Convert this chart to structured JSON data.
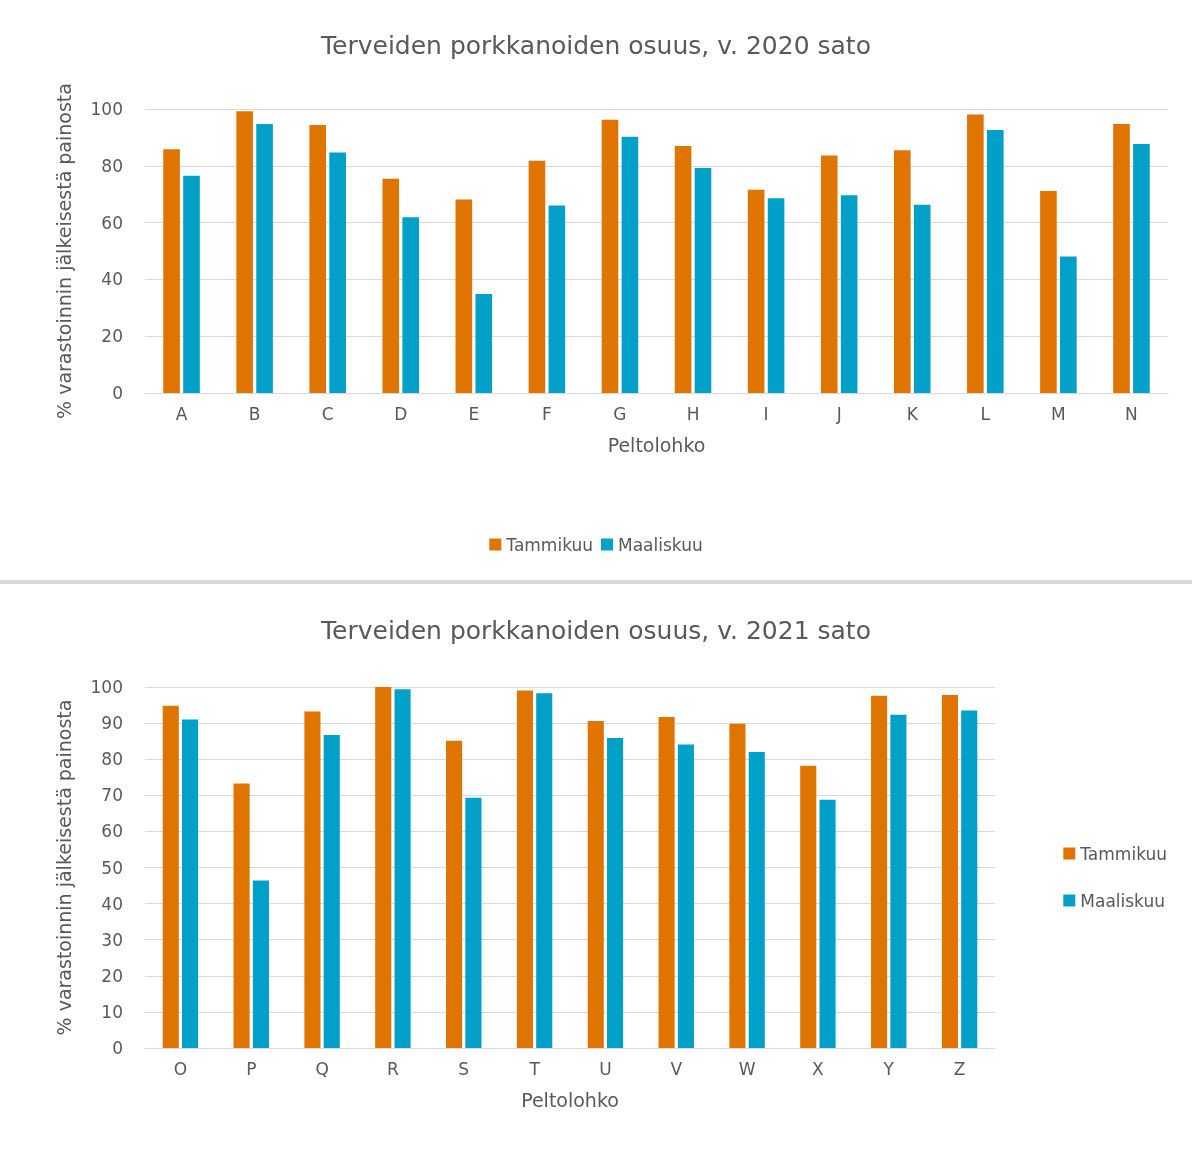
{
  "chart_data": [
    {
      "type": "bar",
      "title": "Terveiden porkkanoiden osuus, v. 2020 sato",
      "xlabel": "Peltolohko",
      "ylabel": "% varastoinnin jälkeisestä painosta",
      "categories": [
        "A",
        "B",
        "C",
        "D",
        "E",
        "F",
        "G",
        "H",
        "I",
        "J",
        "K",
        "L",
        "M",
        "N"
      ],
      "series": [
        {
          "name": "Tammikuu",
          "color": "#e07400",
          "values": [
            85.8,
            99.2,
            94.4,
            75.4,
            68.1,
            81.8,
            96.2,
            87,
            71.6,
            83.6,
            85.5,
            98.1,
            71.1,
            94.7
          ]
        },
        {
          "name": "Maaliskuu",
          "color": "#00a0c8",
          "values": [
            76.5,
            94.7,
            84.7,
            61.9,
            34.9,
            66,
            90.2,
            79.2,
            68.6,
            69.6,
            66.3,
            92.6,
            48.1,
            87.7
          ]
        }
      ],
      "ylim": [
        0,
        100
      ],
      "yticks": [
        0,
        20,
        40,
        60,
        80,
        100
      ],
      "grid": "y",
      "legend": "bottom"
    },
    {
      "type": "bar",
      "title": "Terveiden porkkanoiden osuus, v. 2021 sato",
      "xlabel": "Peltolohko",
      "ylabel": "% varastoinnin jälkeisestä painosta",
      "categories": [
        "O",
        "P",
        "Q",
        "R",
        "S",
        "T",
        "U",
        "V",
        "W",
        "X",
        "Y",
        "Z"
      ],
      "series": [
        {
          "name": "Tammikuu",
          "color": "#e07400",
          "values": [
            94.8,
            73.3,
            93.2,
            100,
            85.1,
            99,
            90.6,
            91.7,
            89.8,
            78.2,
            97.6,
            97.8
          ]
        },
        {
          "name": "Maaliskuu",
          "color": "#00a0c8",
          "values": [
            91,
            46.4,
            86.7,
            99.4,
            69.3,
            98.3,
            85.9,
            84.1,
            82,
            68.8,
            92.3,
            93.5
          ]
        }
      ],
      "ylim": [
        0,
        100
      ],
      "yticks": [
        0,
        10,
        20,
        30,
        40,
        50,
        60,
        70,
        80,
        90,
        100
      ],
      "grid": "y",
      "legend": "right"
    }
  ]
}
